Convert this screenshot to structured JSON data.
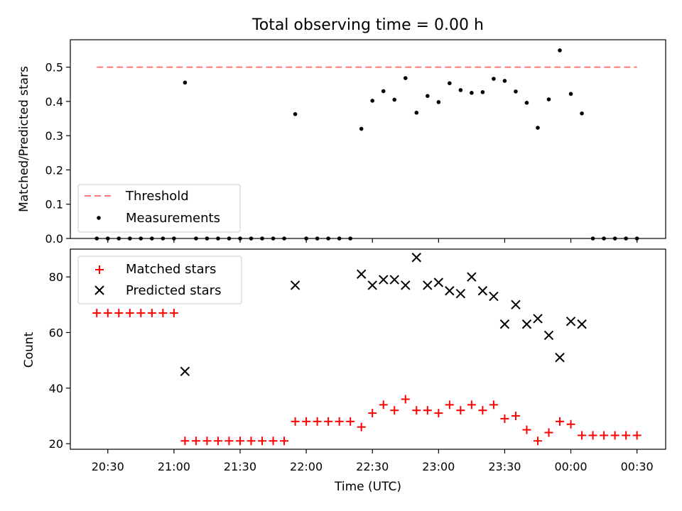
{
  "figure": {
    "title": "Total observing time = 0.00 h",
    "xlabel": "Time (UTC)",
    "x_tick_labels": [
      "20:30",
      "21:00",
      "21:30",
      "22:00",
      "22:30",
      "23:00",
      "23:30",
      "00:00",
      "00:30"
    ]
  },
  "chart_data": [
    {
      "type": "scatter",
      "ylabel": "Matched/Predicted stars",
      "ylim": [
        0,
        0.58
      ],
      "y_ticks": [
        0.0,
        0.1,
        0.2,
        0.3,
        0.4,
        0.5
      ],
      "y_tick_labels": [
        "0.0",
        "0.1",
        "0.2",
        "0.3",
        "0.4",
        "0.5"
      ],
      "legend": {
        "position": "lower-left",
        "entries": [
          "Threshold",
          "Measurements"
        ]
      },
      "threshold": {
        "name": "Threshold",
        "y": 0.5,
        "x_start": "20:25",
        "x_end": "00:30",
        "color": "#ff7777",
        "style": "dashed"
      },
      "series": [
        {
          "name": "Measurements",
          "marker": "dot",
          "color": "#000000",
          "x": [
            "20:25",
            "20:30",
            "20:35",
            "20:40",
            "20:45",
            "20:50",
            "20:55",
            "21:00",
            "21:05",
            "21:10",
            "21:15",
            "21:20",
            "21:25",
            "21:30",
            "21:35",
            "21:40",
            "21:45",
            "21:50",
            "21:55",
            "22:00",
            "22:05",
            "22:10",
            "22:15",
            "22:20",
            "22:25",
            "22:30",
            "22:35",
            "22:40",
            "22:45",
            "22:50",
            "22:55",
            "23:00",
            "23:05",
            "23:10",
            "23:15",
            "23:20",
            "23:25",
            "23:30",
            "23:35",
            "23:40",
            "23:45",
            "23:50",
            "23:55",
            "00:00",
            "00:05",
            "00:10",
            "00:15",
            "00:20",
            "00:25",
            "00:30"
          ],
          "y": [
            0,
            0,
            0,
            0,
            0,
            0,
            0,
            0,
            0.455,
            0,
            0,
            0,
            0,
            0,
            0,
            0,
            0,
            0,
            0.363,
            0,
            0,
            0,
            0,
            0,
            0.32,
            0.402,
            0.43,
            0.405,
            0.468,
            0.367,
            0.416,
            0.398,
            0.453,
            0.433,
            0.425,
            0.427,
            0.466,
            0.46,
            0.429,
            0.396,
            0.323,
            0.406,
            0.549,
            0.422,
            0.365,
            0,
            0,
            0,
            0,
            0
          ]
        }
      ]
    },
    {
      "type": "scatter",
      "ylabel": "Count",
      "ylim": [
        18,
        90
      ],
      "y_ticks": [
        20,
        40,
        60,
        80
      ],
      "y_tick_labels": [
        "20",
        "40",
        "60",
        "80"
      ],
      "legend": {
        "position": "upper-left",
        "entries": [
          "Matched stars",
          "Predicted stars"
        ]
      },
      "series": [
        {
          "name": "Matched stars",
          "marker": "plus",
          "color": "#ff0000",
          "x": [
            "20:25",
            "20:30",
            "20:35",
            "20:40",
            "20:45",
            "20:50",
            "20:55",
            "21:00",
            "21:05",
            "21:10",
            "21:15",
            "21:20",
            "21:25",
            "21:30",
            "21:35",
            "21:40",
            "21:45",
            "21:50",
            "21:55",
            "22:00",
            "22:05",
            "22:10",
            "22:15",
            "22:20",
            "22:25",
            "22:30",
            "22:35",
            "22:40",
            "22:45",
            "22:50",
            "22:55",
            "23:00",
            "23:05",
            "23:10",
            "23:15",
            "23:20",
            "23:25",
            "23:30",
            "23:35",
            "23:40",
            "23:45",
            "23:50",
            "23:55",
            "00:00",
            "00:05",
            "00:10",
            "00:15",
            "00:20",
            "00:25",
            "00:30"
          ],
          "y": [
            67,
            67,
            67,
            67,
            67,
            67,
            67,
            67,
            21,
            21,
            21,
            21,
            21,
            21,
            21,
            21,
            21,
            21,
            28,
            28,
            28,
            28,
            28,
            28,
            26,
            31,
            34,
            32,
            36,
            32,
            32,
            31,
            34,
            32,
            34,
            32,
            34,
            29,
            30,
            25,
            21,
            24,
            28,
            27,
            23,
            23,
            23,
            23,
            23,
            23
          ]
        },
        {
          "name": "Predicted stars",
          "marker": "x",
          "color": "#000000",
          "x": [
            "21:05",
            "21:55",
            "22:25",
            "22:30",
            "22:35",
            "22:40",
            "22:45",
            "22:50",
            "22:55",
            "23:00",
            "23:05",
            "23:10",
            "23:15",
            "23:20",
            "23:25",
            "23:30",
            "23:35",
            "23:40",
            "23:45",
            "23:50",
            "23:55",
            "00:00",
            "00:05"
          ],
          "y": [
            46,
            77,
            81,
            77,
            79,
            79,
            77,
            87,
            77,
            78,
            75,
            74,
            80,
            75,
            73,
            63,
            70,
            63,
            65,
            59,
            51,
            64,
            63
          ]
        }
      ]
    }
  ]
}
